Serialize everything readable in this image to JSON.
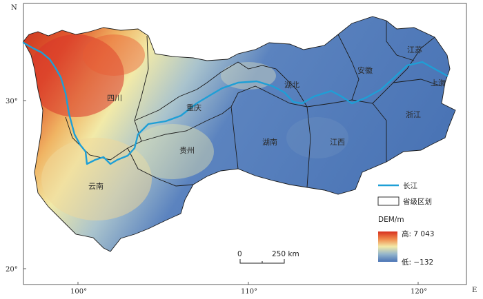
{
  "axes": {
    "north_label": "N",
    "east_label": "E",
    "lat_ticks": [
      "30°",
      "20°"
    ],
    "lon_ticks": [
      "100°",
      "110°",
      "120°"
    ]
  },
  "provinces": [
    {
      "id": "sichuan",
      "label": "四川"
    },
    {
      "id": "chongqing",
      "label": "重庆"
    },
    {
      "id": "guizhou",
      "label": "贵州"
    },
    {
      "id": "yunnan",
      "label": "云南"
    },
    {
      "id": "hubei",
      "label": "湖北"
    },
    {
      "id": "hunan",
      "label": "湖南"
    },
    {
      "id": "jiangxi",
      "label": "江西"
    },
    {
      "id": "anhui",
      "label": "安徽"
    },
    {
      "id": "jiangsu",
      "label": "江苏"
    },
    {
      "id": "shanghai",
      "label": "上海"
    },
    {
      "id": "zhejiang",
      "label": "浙江"
    }
  ],
  "legend": {
    "river": "长江",
    "boundary": "省级区划",
    "dem_title": "DEM/m",
    "high": "高: 7 043",
    "low": "低: −132"
  },
  "scalebar": {
    "start": "0",
    "end": "250 km"
  },
  "colors": {
    "river": "#1e9fd6",
    "boundary": "#1a1a1a",
    "dem_high": "#d7301f",
    "dem_mid": "#f2eaa8",
    "dem_low": "#4a74b5"
  }
}
